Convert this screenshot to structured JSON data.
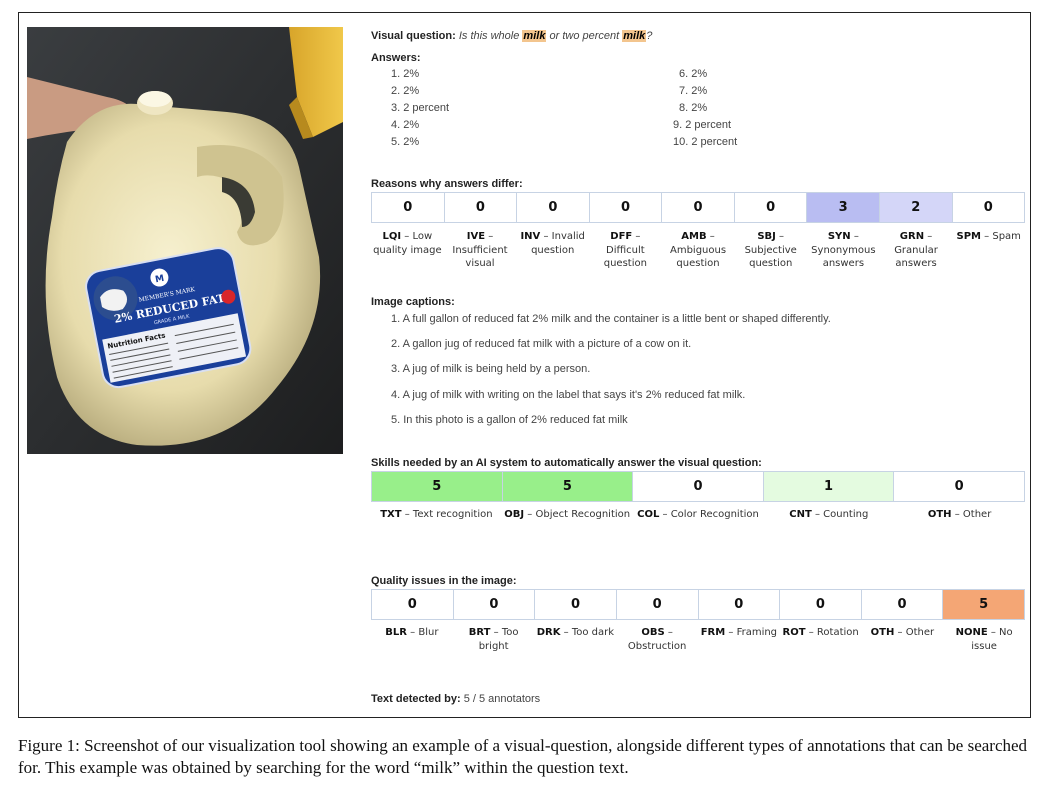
{
  "visual_question": {
    "label": "Visual question:",
    "parts": [
      "Is this whole ",
      "milk",
      " or two percent ",
      "milk",
      "?"
    ]
  },
  "answers": {
    "label": "Answers:",
    "items": [
      "1. 2%",
      "2. 2%",
      "3. 2 percent",
      "4. 2%",
      "5. 2%",
      "6. 2%",
      "7. 2%",
      "8. 2%",
      "9. 2 percent",
      "10. 2 percent"
    ]
  },
  "reasons": {
    "label": "Reasons why answers differ:",
    "items": [
      {
        "value": "0",
        "code": "LQI",
        "desc": "Low quality image",
        "color": "#ffffff"
      },
      {
        "value": "0",
        "code": "IVE",
        "desc": "Insufficient visual",
        "color": "#ffffff"
      },
      {
        "value": "0",
        "code": "INV",
        "desc": "Invalid question",
        "color": "#ffffff"
      },
      {
        "value": "0",
        "code": "DFF",
        "desc": "Difficult question",
        "color": "#ffffff"
      },
      {
        "value": "0",
        "code": "AMB",
        "desc": "Ambiguous question",
        "color": "#ffffff"
      },
      {
        "value": "0",
        "code": "SBJ",
        "desc": "Subjective question",
        "color": "#ffffff"
      },
      {
        "value": "3",
        "code": "SYN",
        "desc": "Synonymous answers",
        "color": "#b9bdf2"
      },
      {
        "value": "2",
        "code": "GRN",
        "desc": "Granular answers",
        "color": "#d4d6f8"
      },
      {
        "value": "0",
        "code": "SPM",
        "desc": "Spam",
        "color": "#ffffff"
      }
    ]
  },
  "captions": {
    "label": "Image captions:",
    "items": [
      "1. A full gallon of reduced fat 2% milk and the container is a little bent or shaped differently.",
      "2. A gallon jug of reduced fat milk with a picture of a cow on it.",
      "3. A jug of milk is being held by a person.",
      "4. A jug of milk with writing on the label that says it's 2% reduced fat milk.",
      "5. In this photo is a gallon of 2% reduced fat milk"
    ]
  },
  "skills": {
    "label": "Skills needed by an AI system to automatically answer the visual question:",
    "items": [
      {
        "value": "5",
        "code": "TXT",
        "desc": "Text recognition",
        "color": "#98ef8a"
      },
      {
        "value": "5",
        "code": "OBJ",
        "desc": "Object Recognition",
        "color": "#98ef8a"
      },
      {
        "value": "0",
        "code": "COL",
        "desc": "Color Recognition",
        "color": "#ffffff"
      },
      {
        "value": "1",
        "code": "CNT",
        "desc": "Counting",
        "color": "#e4fbe0"
      },
      {
        "value": "0",
        "code": "OTH",
        "desc": "Other",
        "color": "#ffffff"
      }
    ]
  },
  "quality": {
    "label": "Quality issues in the image:",
    "items": [
      {
        "value": "0",
        "code": "BLR",
        "desc": "Blur",
        "color": "#ffffff"
      },
      {
        "value": "0",
        "code": "BRT",
        "desc": "Too bright",
        "color": "#ffffff"
      },
      {
        "value": "0",
        "code": "DRK",
        "desc": "Too dark",
        "color": "#ffffff"
      },
      {
        "value": "0",
        "code": "OBS",
        "desc": "Obstruction",
        "color": "#ffffff"
      },
      {
        "value": "0",
        "code": "FRM",
        "desc": "Framing",
        "color": "#ffffff"
      },
      {
        "value": "0",
        "code": "ROT",
        "desc": "Rotation",
        "color": "#ffffff"
      },
      {
        "value": "0",
        "code": "OTH",
        "desc": "Other",
        "color": "#ffffff"
      },
      {
        "value": "5",
        "code": "NONE",
        "desc": "No issue",
        "color": "#f4a675"
      }
    ]
  },
  "text_detected": {
    "label": "Text detected by:",
    "value": "5 / 5 annotators"
  },
  "photo": {
    "label_brand": "MEMBER'S MARK",
    "label_main": "2% REDUCED FAT",
    "label_sub": "GRADE A MILK",
    "label_nutrition": "Nutrition Facts"
  },
  "figure_caption": "Figure 1:  Screenshot of our visualization tool showing an example of a visual-question, alongside different types of annotations that can be searched for. This example was obtained by searching for the word “milk” within the question text."
}
